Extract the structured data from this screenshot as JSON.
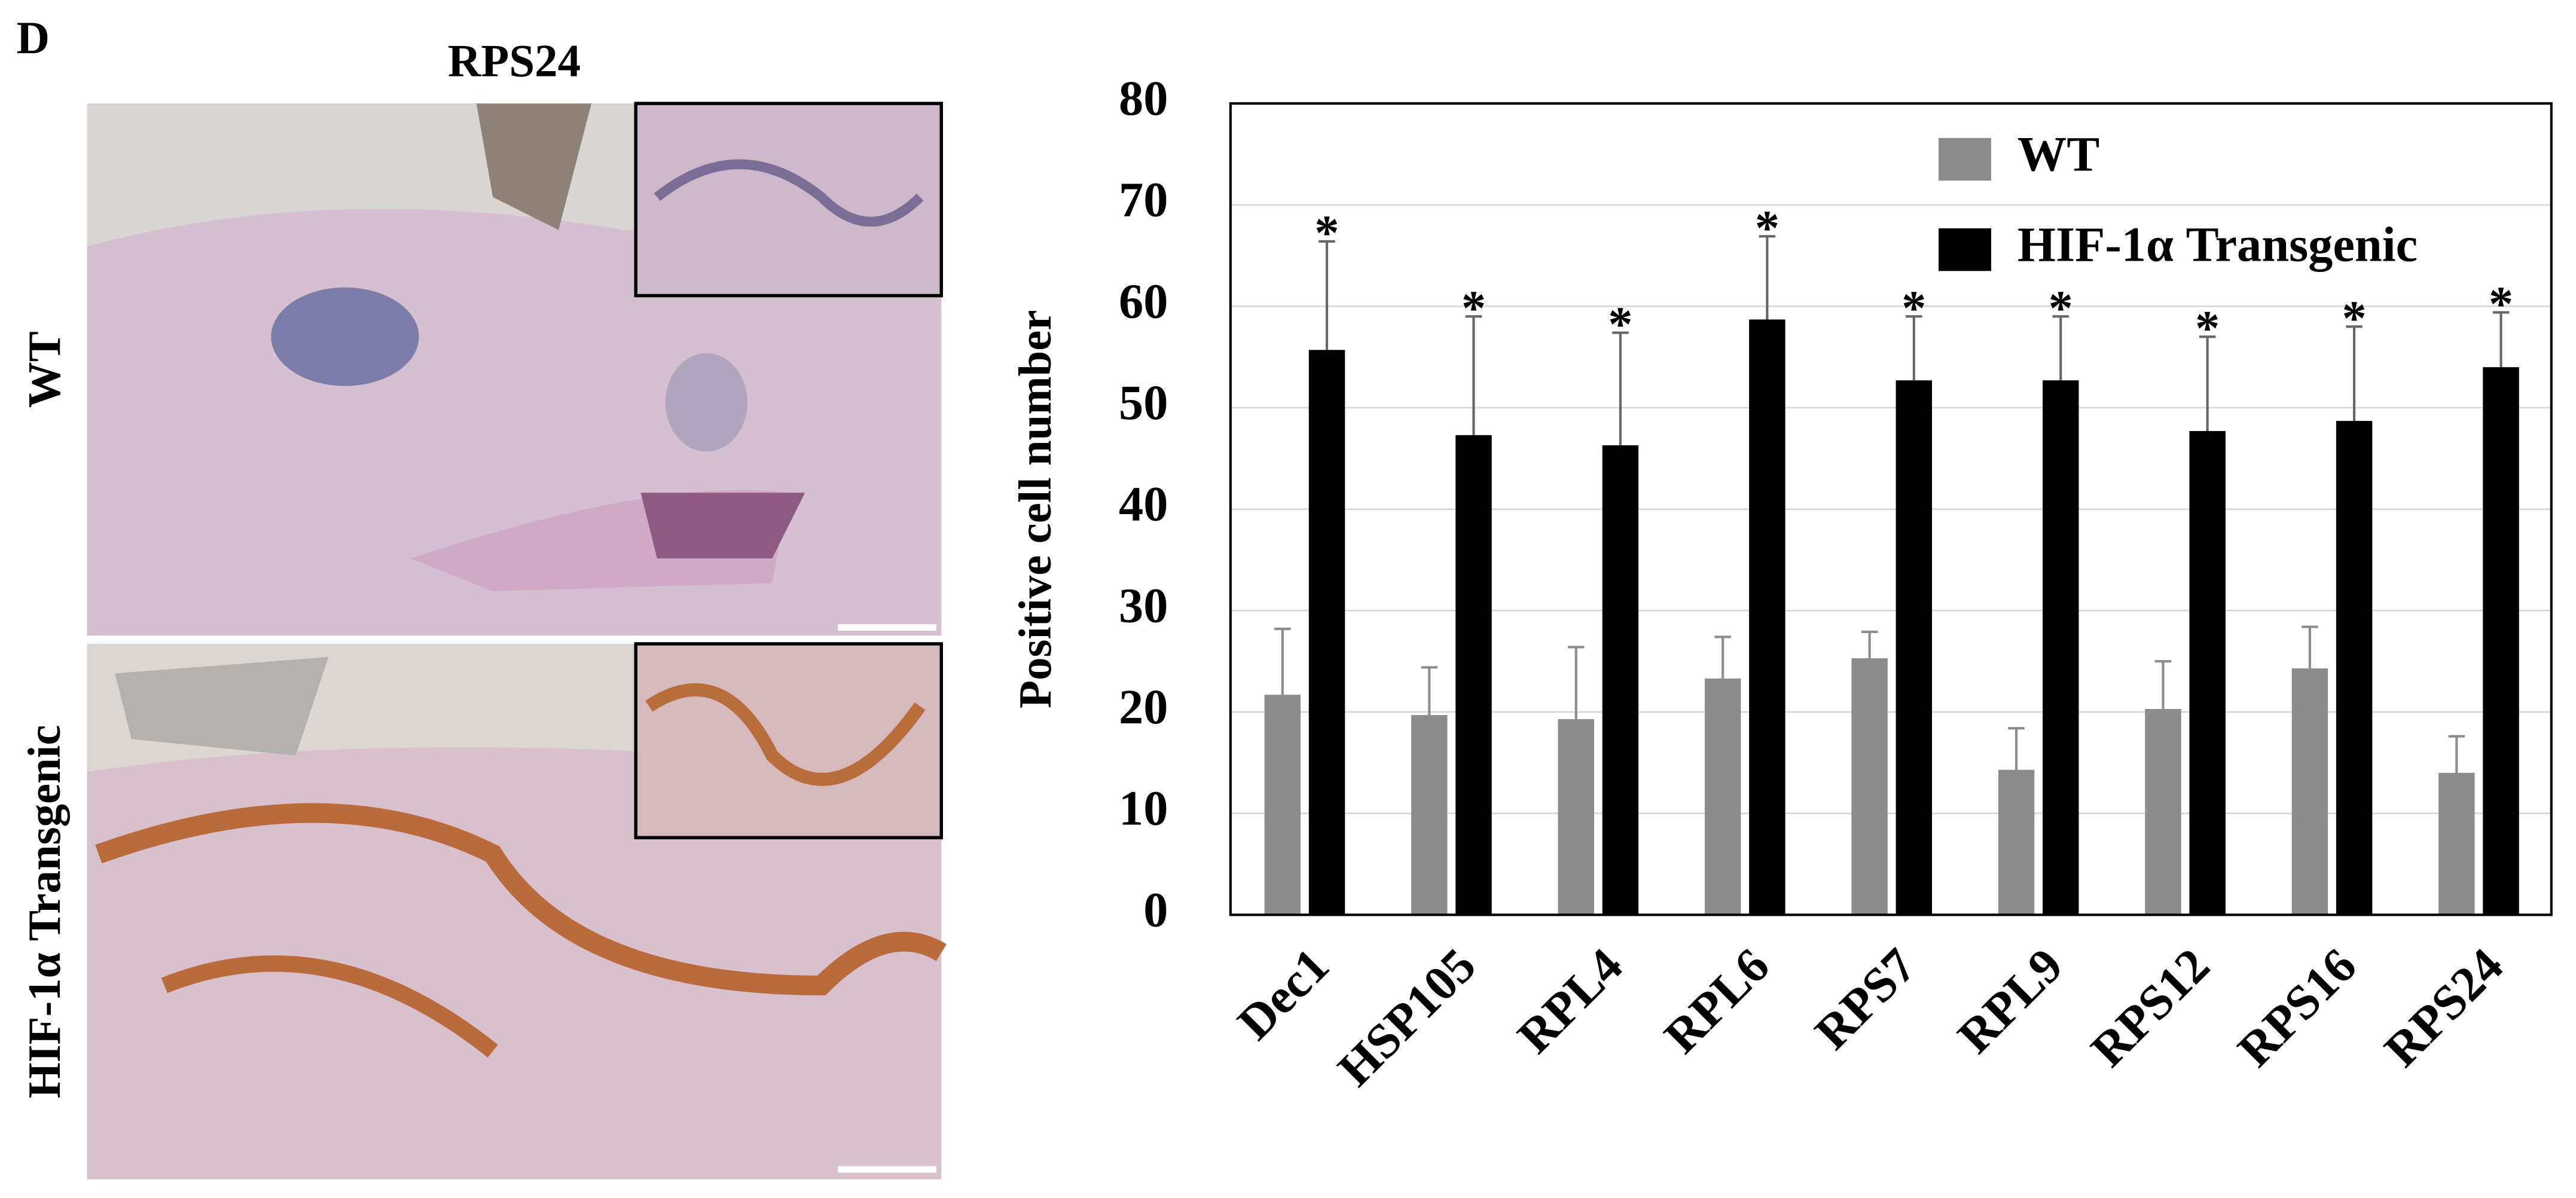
{
  "figure": {
    "panel_label": "D",
    "image_title": "RPS24",
    "row_labels": [
      "WT",
      "HIF-1α Transgenic"
    ]
  },
  "chart_data": {
    "type": "bar",
    "ylabel": "Positive cell number",
    "categories": [
      "Dec1",
      "HSP105",
      "RPL4",
      "RPL6",
      "RPS7",
      "RPL9",
      "RPS12",
      "RPS16",
      "RPS24"
    ],
    "series": [
      {
        "name": "WT",
        "color": "#8c8c8c",
        "values": [
          21.7,
          19.7,
          19.3,
          23.3,
          25.3,
          14.3,
          20.3,
          24.3,
          14.0
        ],
        "errors": [
          6.5,
          4.7,
          7.1,
          4.1,
          2.6,
          4.1,
          4.7,
          4.1,
          3.6
        ]
      },
      {
        "name": "HIF-1α Transgenic",
        "color": "#000000",
        "values": [
          55.7,
          47.3,
          46.3,
          58.7,
          52.7,
          52.7,
          47.7,
          48.7,
          54.0
        ],
        "errors": [
          10.7,
          11.7,
          11.1,
          8.2,
          6.3,
          6.3,
          9.3,
          9.3,
          5.4
        ]
      }
    ],
    "annotations": [
      "*",
      "*",
      "*",
      "*",
      "*",
      "*",
      "*",
      "*",
      "*"
    ],
    "ylim": [
      0,
      80
    ],
    "yticks": [
      0,
      10,
      20,
      30,
      40,
      50,
      60,
      70,
      80
    ],
    "grid": true,
    "legend": "upper right"
  }
}
